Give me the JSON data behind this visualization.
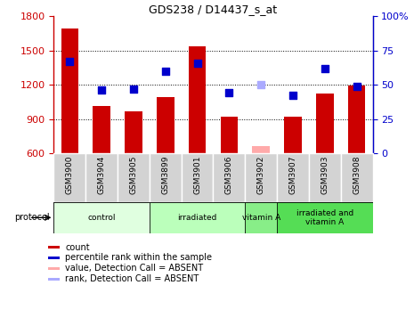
{
  "title": "GDS238 / D14437_s_at",
  "samples": [
    "GSM3900",
    "GSM3904",
    "GSM3905",
    "GSM3899",
    "GSM3901",
    "GSM3906",
    "GSM3902",
    "GSM3907",
    "GSM3903",
    "GSM3908"
  ],
  "counts": [
    1690,
    1010,
    970,
    1090,
    1540,
    920,
    null,
    920,
    1120,
    1190
  ],
  "counts_absent": [
    null,
    null,
    null,
    null,
    null,
    null,
    660,
    null,
    null,
    null
  ],
  "ranks": [
    67,
    46,
    47,
    60,
    66,
    44,
    null,
    42,
    62,
    49
  ],
  "ranks_absent": [
    null,
    null,
    null,
    null,
    null,
    null,
    50,
    null,
    null,
    null
  ],
  "ylim_left": [
    600,
    1800
  ],
  "ylim_right": [
    0,
    100
  ],
  "yticks_left": [
    600,
    900,
    1200,
    1500,
    1800
  ],
  "yticks_right": [
    0,
    25,
    50,
    75,
    100
  ],
  "bar_color_present": "#cc0000",
  "bar_color_absent": "#ffaaaa",
  "rank_color_present": "#0000cc",
  "rank_color_absent": "#aaaaff",
  "protocols": [
    {
      "label": "control",
      "start": 0,
      "end": 3,
      "color": "#e0ffe0"
    },
    {
      "label": "irradiated",
      "start": 3,
      "end": 6,
      "color": "#bbffbb"
    },
    {
      "label": "vitamin A",
      "start": 6,
      "end": 7,
      "color": "#88ee88"
    },
    {
      "label": "irradiated and\nvitamin A",
      "start": 7,
      "end": 10,
      "color": "#55dd55"
    }
  ],
  "protocol_label": "protocol",
  "legend_items": [
    {
      "label": "count",
      "color": "#cc0000"
    },
    {
      "label": "percentile rank within the sample",
      "color": "#0000cc"
    },
    {
      "label": "value, Detection Call = ABSENT",
      "color": "#ffaaaa"
    },
    {
      "label": "rank, Detection Call = ABSENT",
      "color": "#aaaaff"
    }
  ]
}
